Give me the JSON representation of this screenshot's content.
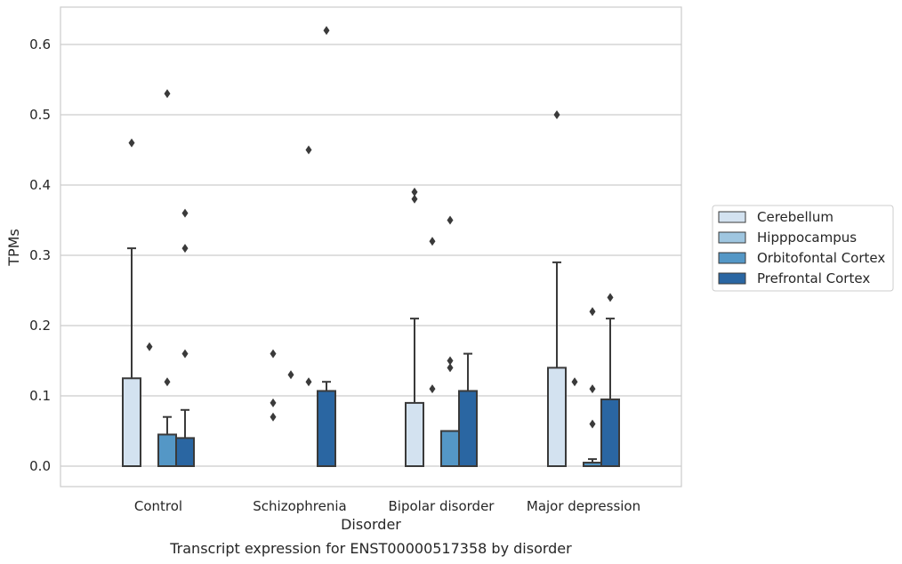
{
  "chart_data": {
    "type": "bar",
    "title": "Transcript expression for ENST00000517358 by disorder",
    "xlabel": "Disorder",
    "ylabel": "TPMs",
    "ylim": [
      -0.03,
      0.65
    ],
    "yticks": [
      "0.0",
      "0.1",
      "0.2",
      "0.3",
      "0.4",
      "0.5",
      "0.6"
    ],
    "grid": "horizontal",
    "legend_position": "right",
    "categories": [
      "Control",
      "Schizophrenia",
      "Bipolar disorder",
      "Major depression"
    ],
    "series": [
      {
        "name": "Cerebellum",
        "color": "#d3e2f0",
        "values": [
          0.125,
          0.0,
          0.09,
          0.14
        ],
        "error_upper": [
          0.31,
          0.0,
          0.21,
          0.29
        ],
        "outliers": [
          [
            0.46
          ],
          [
            0.16,
            0.09,
            0.07
          ],
          [
            0.39,
            0.38
          ],
          [
            0.5
          ]
        ]
      },
      {
        "name": "Hipppocampus",
        "color": "#9fc6e0",
        "values": [
          0.0,
          0.0,
          0.0,
          0.0
        ],
        "error_upper": [
          0.0,
          0.0,
          0.0,
          0.0
        ],
        "outliers": [
          [
            0.17
          ],
          [
            0.13
          ],
          [
            0.32,
            0.11
          ],
          [
            0.12
          ]
        ]
      },
      {
        "name": "Orbitofontal Cortex",
        "color": "#5497c6",
        "values": [
          0.045,
          0.0,
          0.05,
          0.005
        ],
        "error_upper": [
          0.07,
          0.0,
          0.0,
          0.01
        ],
        "outliers": [
          [
            0.53,
            0.12
          ],
          [
            0.45,
            0.12
          ],
          [
            0.35,
            0.15,
            0.14
          ],
          [
            0.22,
            0.11,
            0.06
          ]
        ]
      },
      {
        "name": "Prefrontal Cortex",
        "color": "#2a66a2",
        "values": [
          0.04,
          0.107,
          0.107,
          0.095
        ],
        "error_upper": [
          0.08,
          0.12,
          0.16,
          0.21
        ],
        "outliers": [
          [
            0.36,
            0.31,
            0.16
          ],
          [
            0.62
          ],
          [],
          [
            0.24
          ]
        ]
      }
    ]
  }
}
